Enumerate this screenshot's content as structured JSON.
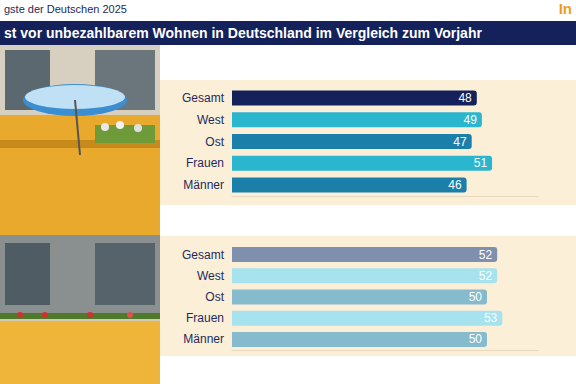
{
  "header": "gste der Deutschen 2025",
  "logo": "In",
  "title": "st vor unbezahlbarem Wohnen in Deutschland im Vergleich zum Vorjahr",
  "chart_data": [
    {
      "type": "bar",
      "orientation": "horizontal",
      "categories": [
        "Gesamt",
        "West",
        "Ost",
        "Frauen",
        "Männer"
      ],
      "values": [
        48,
        49,
        47,
        51,
        46
      ],
      "colors": [
        "#14215a",
        "#2bb6d0",
        "#1a80aa",
        "#2bb6d0",
        "#1a80aa"
      ],
      "xlim": [
        0,
        60
      ],
      "xticks": [],
      "tick_labels": "y",
      "data_labels": true,
      "grid": false
    },
    {
      "type": "bar",
      "orientation": "horizontal",
      "categories": [
        "Gesamt",
        "West",
        "Ost",
        "Frauen",
        "Männer"
      ],
      "values": [
        52,
        52,
        50,
        53,
        50
      ],
      "colors": [
        "#7f8fae",
        "#a6e3ef",
        "#86bacd",
        "#a6e3ef",
        "#86bacd"
      ],
      "xlim": [
        0,
        60
      ],
      "xticks": [],
      "tick_labels": "y",
      "data_labels": true,
      "grid": false
    }
  ]
}
